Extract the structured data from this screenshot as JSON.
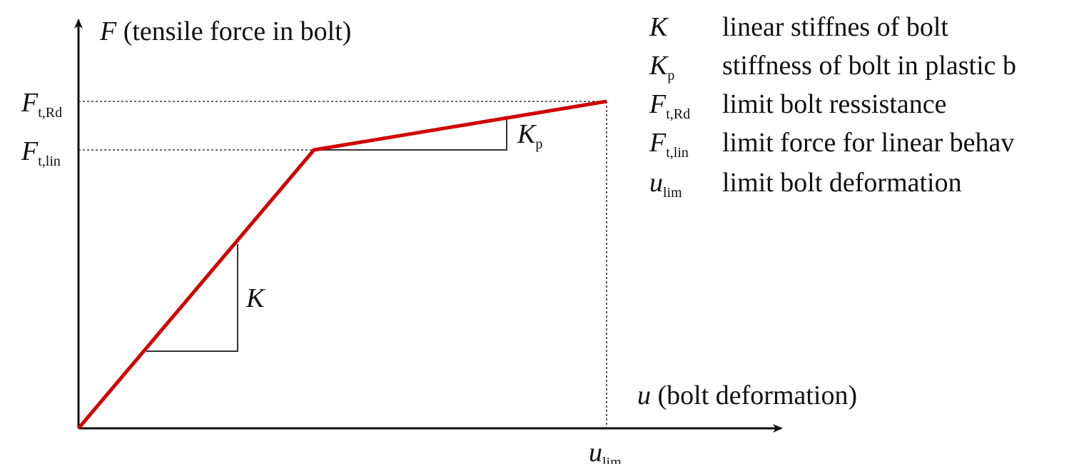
{
  "y_axis": {
    "symbol": "F",
    "label": "(tensile force in bolt)"
  },
  "x_axis": {
    "symbol": "u",
    "label": "(bolt deformation)"
  },
  "y_markers": [
    {
      "symbol": "F",
      "subscript": "t,Rd"
    },
    {
      "symbol": "F",
      "subscript": "t,lin"
    }
  ],
  "x_marker": {
    "symbol": "u",
    "subscript": "lim"
  },
  "slopes": [
    {
      "symbol": "K",
      "subscript": null
    },
    {
      "symbol": "K",
      "subscript": "p"
    }
  ],
  "legend": [
    {
      "symbol": "K",
      "subscript": null,
      "text": "linear stiffnes of bolt"
    },
    {
      "symbol": "K",
      "subscript": "p",
      "text": "stiffness of bolt in plastic b"
    },
    {
      "symbol": "F",
      "subscript": "t,Rd",
      "text": "limit bolt ressistance"
    },
    {
      "symbol": "F",
      "subscript": "t,lin",
      "text": "limit force for linear behav"
    },
    {
      "symbol": "u",
      "subscript": "lim",
      "text": "limit bolt deformation"
    }
  ]
}
